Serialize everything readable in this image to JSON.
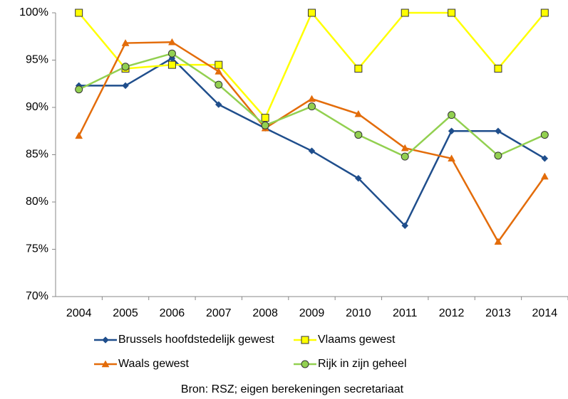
{
  "chart_data": {
    "type": "line",
    "categories": [
      "2004",
      "2005",
      "2006",
      "2007",
      "2008",
      "2009",
      "2010",
      "2011",
      "2012",
      "2013",
      "2014"
    ],
    "series": [
      {
        "name": "Brussels hoofdstedelijk gewest",
        "color": "#1f4e8c",
        "marker": "diamond",
        "values": [
          92.3,
          92.3,
          95.2,
          90.3,
          87.8,
          85.4,
          82.5,
          77.5,
          87.5,
          87.5,
          84.6
        ]
      },
      {
        "name": "Vlaams gewest",
        "color": "#ffff00",
        "marker": "square",
        "values": [
          100,
          94.1,
          94.5,
          94.5,
          88.9,
          100,
          94.1,
          100,
          100,
          94.1,
          100
        ]
      },
      {
        "name": "Waals gewest",
        "color": "#e36c0a",
        "marker": "triangle",
        "values": [
          87.0,
          96.8,
          96.9,
          93.8,
          87.8,
          90.9,
          89.3,
          85.7,
          84.6,
          75.8,
          82.7
        ]
      },
      {
        "name": "Rijk in zijn geheel",
        "color": "#92d050",
        "marker": "circle",
        "values": [
          91.9,
          94.3,
          95.7,
          92.4,
          88.1,
          90.1,
          87.1,
          84.8,
          89.2,
          84.9,
          87.1
        ]
      }
    ],
    "ylim": [
      70,
      100
    ],
    "yticks": [
      {
        "value": 70,
        "label": "70%"
      },
      {
        "value": 75,
        "label": "75%"
      },
      {
        "value": 80,
        "label": "80%"
      },
      {
        "value": 85,
        "label": "85%"
      },
      {
        "value": 90,
        "label": "90%"
      },
      {
        "value": 95,
        "label": "95%"
      },
      {
        "value": 100,
        "label": "100%"
      }
    ],
    "grid": false,
    "legend": "bottom",
    "source": "Bron: RSZ; eigen berekeningen secretariaat"
  }
}
